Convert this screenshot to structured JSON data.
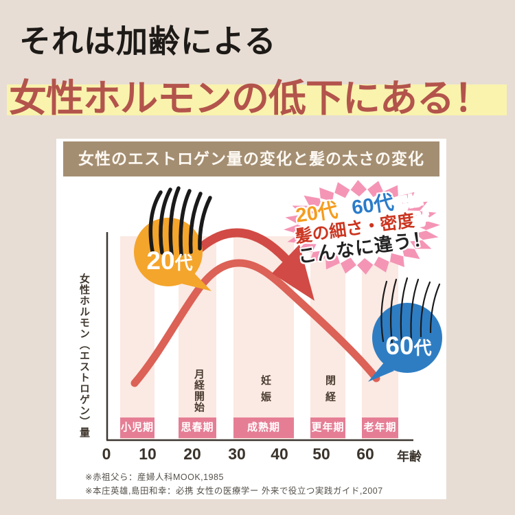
{
  "headline": {
    "line1": "それは加齢による",
    "line2": "女性ホルモンの低下にある！"
  },
  "chart": {
    "header": "女性のエストロゲン量の変化と髪の太さの変化",
    "y_axis_label": "女性ホルモン（エストロゲン）量",
    "x_unit": "年齢",
    "x_ticks": [
      "0",
      "10",
      "20",
      "30",
      "40",
      "50",
      "60"
    ],
    "stages": [
      "小児期",
      "思春期",
      "成熟期",
      "更年期",
      "老年期"
    ],
    "events": [
      "月経開始",
      "妊娠",
      "閉経"
    ],
    "bubble_young": {
      "num": "20",
      "suffix": "代"
    },
    "bubble_old": {
      "num": "60",
      "suffix": "代"
    },
    "burst": {
      "age1": "20代",
      "and": "と",
      "age2": "60代",
      "tail1": "では",
      "hair": "髪の細さ・密度",
      "tail2": "が",
      "line3": "こんなに違う！"
    },
    "footnotes": [
      "※赤祖父ら：産婦人科MOOK,1985",
      "※本庄英雄,島田和幸：必携 女性の医療学ー 外来で役立つ実践ガイド,2007"
    ]
  },
  "colors": {
    "page_background": "#e7ddd4",
    "headline_highlight": "#f9f3ad",
    "headline_red": "#b3544c",
    "header_bar": "#a48e72",
    "band_light": "#fbe9e3",
    "band_label": "#e57e95",
    "curve": "#dc6156",
    "arrow": "#d14a45",
    "bubble_young": "#f4a52b",
    "bubble_old": "#2e7dc3",
    "starburst": "#f595b5"
  },
  "chart_data": {
    "type": "line",
    "title": "女性のエストロゲン量の変化と髪の太さの変化",
    "xlabel": "年齢",
    "ylabel": "女性ホルモン（エストロゲン）量",
    "x_range": [
      0,
      70
    ],
    "y_axis_numeric": false,
    "x": [
      6,
      10,
      15,
      20,
      25,
      30,
      35,
      40,
      45,
      50,
      55,
      60,
      63
    ],
    "values": [
      8,
      18,
      42,
      68,
      90,
      100,
      97,
      86,
      67,
      47,
      28,
      13,
      8
    ],
    "grid": false,
    "stage_bands": [
      {
        "label": "小児期",
        "age_range": [
          3,
          11
        ]
      },
      {
        "label": "思春期",
        "age_range": [
          17,
          25
        ]
      },
      {
        "label": "成熟期",
        "age_range": [
          29,
          43
        ]
      },
      {
        "label": "更年期",
        "age_range": [
          47,
          55
        ]
      },
      {
        "label": "老年期",
        "age_range": [
          59,
          67
        ]
      }
    ],
    "events": [
      {
        "label": "月経開始",
        "age": 21
      },
      {
        "label": "妊娠",
        "age": 36
      },
      {
        "label": "閉経",
        "age": 51
      }
    ],
    "annotations": [
      "20代",
      "60代",
      "20代と60代では髪の細さ・密度がこんなに違う！"
    ]
  }
}
